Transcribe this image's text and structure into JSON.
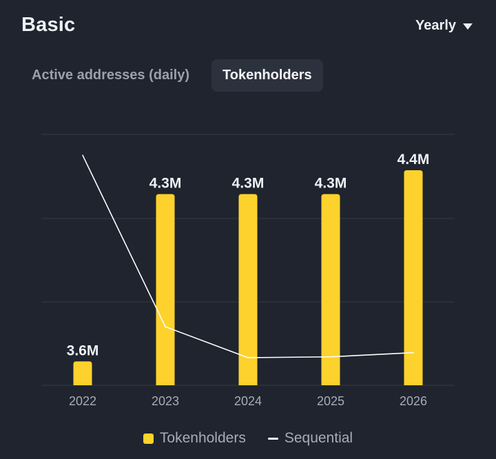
{
  "header": {
    "title": "Basic",
    "period_label": "Yearly"
  },
  "tabs": [
    {
      "label": "Active addresses (daily)",
      "active": false
    },
    {
      "label": "Tokenholders",
      "active": true
    }
  ],
  "colors": {
    "background": "#1f242e",
    "bar": "#fdd22c",
    "line": "#ffffff",
    "grid": "#343a45",
    "axis_text": "#a7adb8",
    "value_text": "#eef1f6"
  },
  "chart_data": {
    "type": "bar",
    "categories": [
      "2022",
      "2023",
      "2024",
      "2025",
      "2026"
    ],
    "series": [
      {
        "name": "Tokenholders",
        "type": "bar",
        "values": [
          3.6,
          4.3,
          4.3,
          4.3,
          4.4
        ],
        "labels": [
          "3.6M",
          "4.3M",
          "4.3M",
          "4.3M",
          "4.4M"
        ]
      },
      {
        "name": "Sequential",
        "type": "line",
        "values": [
          27.5,
          7.0,
          3.3,
          3.4,
          3.9
        ]
      }
    ],
    "bar_axis": {
      "min": 3.5,
      "max": 4.55,
      "unit": "M"
    },
    "line_axis": {
      "min": 0,
      "max": 30
    },
    "grid": true,
    "legend_position": "bottom",
    "legend": [
      "Tokenholders",
      "Sequential"
    ]
  },
  "legend": {
    "items": [
      {
        "label": "Tokenholders",
        "icon": "bar-swatch"
      },
      {
        "label": "Sequential",
        "icon": "line-swatch"
      }
    ]
  }
}
